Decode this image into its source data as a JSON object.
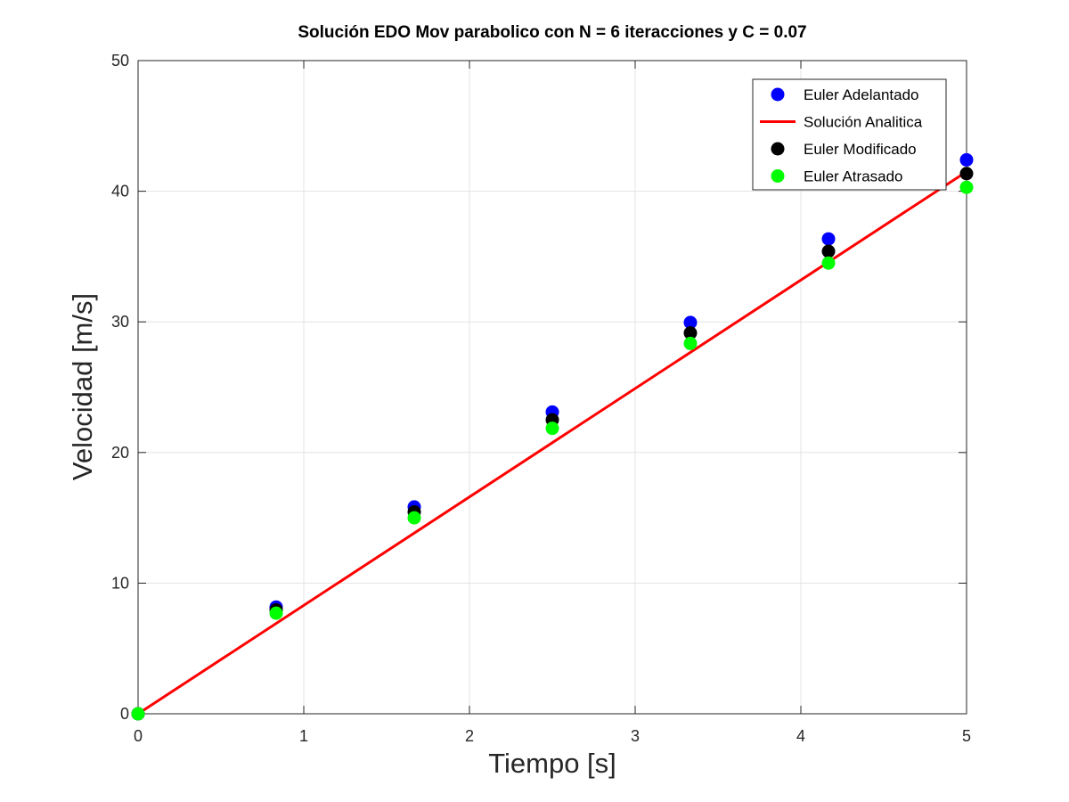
{
  "chart_data": {
    "type": "scatter",
    "title": "Solución EDO Mov parabolico con N = 6 iteracciones y  C = 0.07",
    "xlabel": "Tiempo [s]",
    "ylabel": "Velocidad [m/s]",
    "xlim": [
      0,
      5
    ],
    "ylim": [
      0,
      50
    ],
    "xticks": [
      0,
      1,
      2,
      3,
      4,
      5
    ],
    "yticks": [
      0,
      10,
      20,
      30,
      40,
      50
    ],
    "grid": true,
    "legend_position": "top-right",
    "x": [
      0,
      0.8333,
      1.6667,
      2.5,
      3.3333,
      4.1667,
      5
    ],
    "series": [
      {
        "name": "Euler Adelantado",
        "kind": "markers",
        "color": "#0000ff",
        "values": [
          0,
          8.17,
          15.83,
          23.1,
          29.95,
          36.35,
          42.4
        ]
      },
      {
        "name": "Solución Analitica",
        "kind": "line",
        "color": "#ff0000",
        "x": [
          0,
          5
        ],
        "values": [
          0,
          41.5
        ]
      },
      {
        "name": "Euler Modificado",
        "kind": "markers",
        "color": "#000000",
        "values": [
          0,
          7.95,
          15.45,
          22.5,
          29.15,
          35.4,
          41.35
        ]
      },
      {
        "name": "Euler Atrasado",
        "kind": "markers",
        "color": "#00ff00",
        "values": [
          0,
          7.7,
          15.0,
          21.85,
          28.35,
          34.5,
          40.3
        ]
      }
    ]
  }
}
